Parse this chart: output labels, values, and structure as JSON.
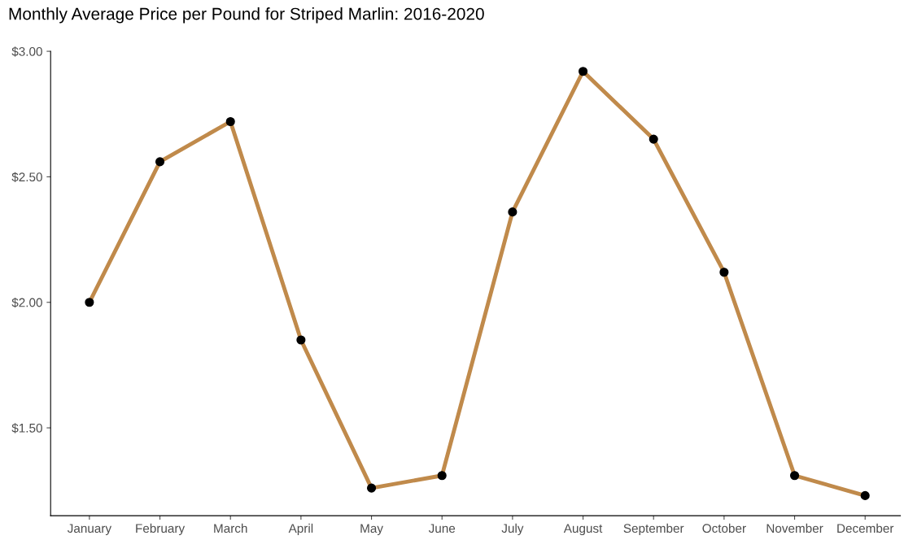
{
  "chart_data": {
    "type": "line",
    "title": "Monthly Average Price per Pound for Striped Marlin: 2016-2020",
    "categories": [
      "January",
      "February",
      "March",
      "April",
      "May",
      "June",
      "July",
      "August",
      "September",
      "October",
      "November",
      "December"
    ],
    "series": [
      {
        "color": "#c08a4b",
        "values": [
          2.0,
          2.56,
          2.72,
          1.85,
          1.26,
          1.31,
          2.36,
          2.92,
          2.65,
          2.12,
          1.31,
          1.23
        ]
      }
    ],
    "ylim": [
      1.15,
      3.0
    ],
    "yticks": [
      {
        "value": 1.5,
        "label": "$1.50"
      },
      {
        "value": 2.0,
        "label": "$2.00"
      },
      {
        "value": 2.5,
        "label": "$2.50"
      },
      {
        "value": 3.0,
        "label": "$3.00"
      }
    ],
    "grid": false,
    "marker": "circle",
    "line_style": "solid"
  }
}
